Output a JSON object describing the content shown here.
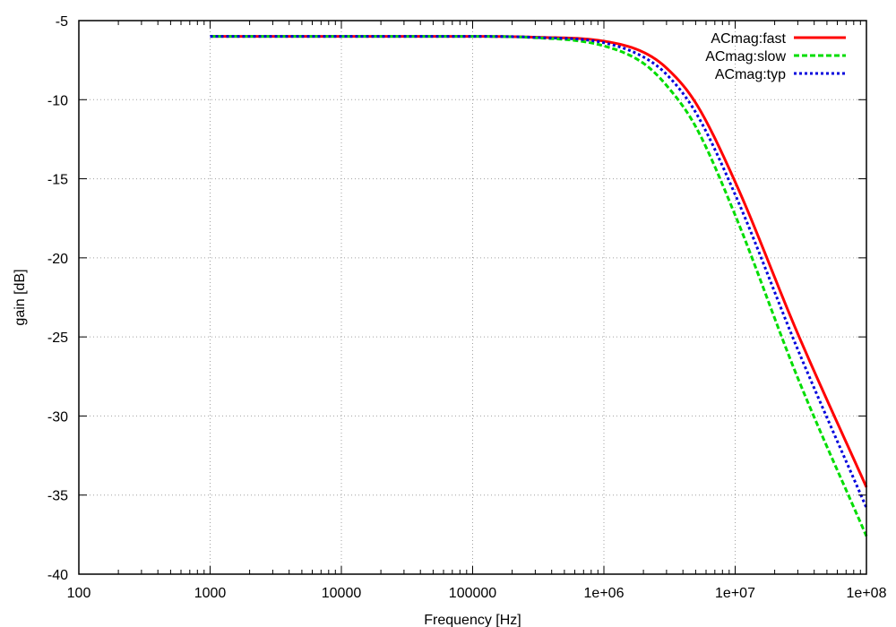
{
  "chart_data": {
    "type": "line",
    "title": "",
    "xlabel": "Frequency [Hz]",
    "ylabel": "gain [dB]",
    "x_scale": "log",
    "xlim": [
      100,
      100000000
    ],
    "ylim": [
      -40,
      -5
    ],
    "grid": true,
    "legend_position": "top-right",
    "x_ticks": [
      {
        "value": 100,
        "label": "100"
      },
      {
        "value": 1000,
        "label": "1000"
      },
      {
        "value": 10000,
        "label": "10000"
      },
      {
        "value": 100000,
        "label": "100000"
      },
      {
        "value": 1000000,
        "label": "1e+06"
      },
      {
        "value": 10000000,
        "label": "1e+07"
      },
      {
        "value": 100000000,
        "label": "1e+08"
      }
    ],
    "y_ticks": [
      {
        "value": -40,
        "label": "-40"
      },
      {
        "value": -35,
        "label": "-35"
      },
      {
        "value": -30,
        "label": "-30"
      },
      {
        "value": -25,
        "label": "-25"
      },
      {
        "value": -20,
        "label": "-20"
      },
      {
        "value": -15,
        "label": "-15"
      },
      {
        "value": -10,
        "label": "-10"
      },
      {
        "value": -5,
        "label": "-5"
      }
    ],
    "series": [
      {
        "name": "ACmag:fast",
        "color": "#ff0000",
        "style": "solid",
        "x": [
          1000,
          10000,
          100000,
          300000,
          1000000,
          2000000,
          3000000,
          5000000,
          10000000,
          30000000,
          100000000
        ],
        "y": [
          -6.0,
          -6.0,
          -6.0,
          -6.05,
          -6.3,
          -7.0,
          -8.0,
          -10.2,
          -15.2,
          -24.8,
          -34.5
        ]
      },
      {
        "name": "ACmag:slow",
        "color": "#00dd00",
        "style": "dashed",
        "x": [
          1000,
          10000,
          100000,
          300000,
          1000000,
          2000000,
          3000000,
          5000000,
          10000000,
          30000000,
          100000000
        ],
        "y": [
          -6.0,
          -6.0,
          -6.0,
          -6.08,
          -6.6,
          -7.7,
          -9.1,
          -11.7,
          -17.3,
          -27.6,
          -37.6
        ]
      },
      {
        "name": "ACmag:typ",
        "color": "#0000dd",
        "style": "dotted",
        "x": [
          1000,
          10000,
          100000,
          300000,
          1000000,
          2000000,
          3000000,
          5000000,
          10000000,
          30000000,
          100000000
        ],
        "y": [
          -6.0,
          -6.0,
          -6.0,
          -6.06,
          -6.4,
          -7.3,
          -8.4,
          -10.8,
          -16.0,
          -25.8,
          -35.8
        ]
      }
    ]
  }
}
